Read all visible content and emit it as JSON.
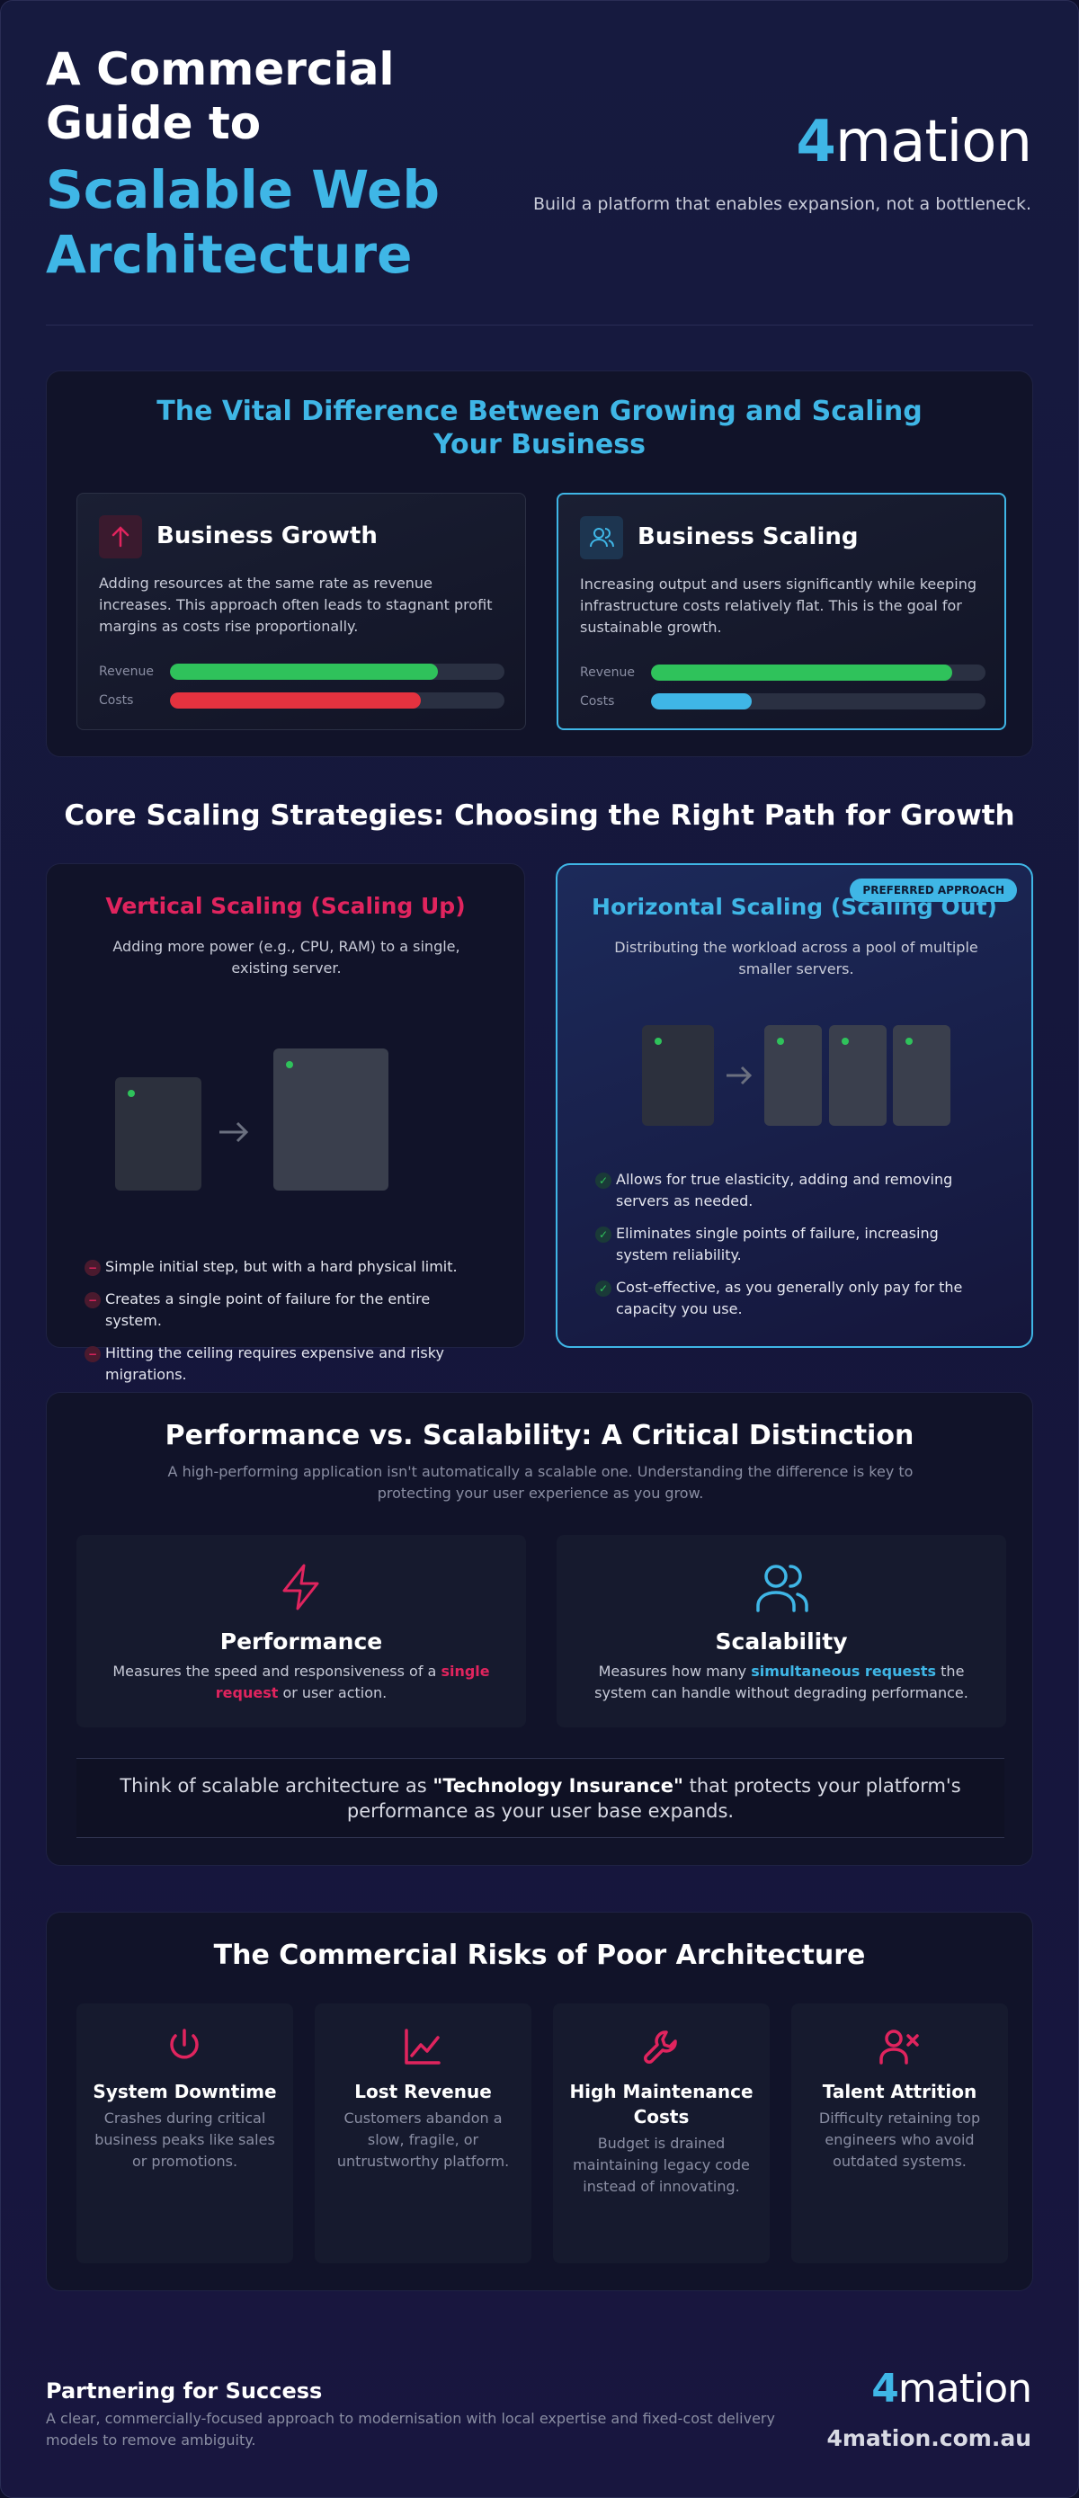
{
  "header": {
    "title_line1": "A Commercial",
    "title_line2": "Guide to",
    "title_line3": "Scalable Web",
    "title_line4": "Architecture",
    "logo": "4mation",
    "tagline": "Build a platform that enables expansion, not a bottleneck."
  },
  "difference": {
    "title": "The Vital Difference Between Growing and Scaling Your Business",
    "cards": [
      {
        "title": "Business Growth",
        "text": "Adding resources at the same rate as revenue increases. This approach often leads to stagnant profit margins as costs rise proportionally.",
        "bars": [
          {
            "label": "Revenue",
            "value": 80
          },
          {
            "label": "Costs",
            "value": 75
          }
        ]
      },
      {
        "title": "Business Scaling",
        "text": "Increasing output and users significantly while keeping infrastructure costs relatively flat. This is the goal for sustainable growth.",
        "bars": [
          {
            "label": "Revenue",
            "value": 90
          },
          {
            "label": "Costs",
            "value": 30
          }
        ]
      }
    ]
  },
  "strategies": {
    "title": "Core Scaling Strategies: Choosing the Right Path for Growth",
    "vertical": {
      "title": "Vertical Scaling (Scaling Up)",
      "text": "Adding more power (e.g., CPU, RAM) to a single, existing server.",
      "points": [
        "Simple initial step, but with a hard physical limit.",
        "Creates a single point of failure for the entire system.",
        "Hitting the ceiling requires expensive and risky migrations."
      ]
    },
    "horizontal": {
      "badge": "PREFERRED APPROACH",
      "title": "Horizontal Scaling (Scaling Out)",
      "text": "Distributing the workload across a pool of multiple smaller servers.",
      "points": [
        "Allows for true elasticity, adding and removing servers as needed.",
        "Eliminates single points of failure, increasing system reliability.",
        "Cost-effective, as you generally only pay for the capacity you use."
      ]
    }
  },
  "performance": {
    "title": "Performance vs. Scalability: A Critical Distinction",
    "subtitle": "A high-performing application isn't automatically a scalable one. Understanding the difference is key to protecting your user experience as you grow.",
    "cards": [
      {
        "title": "Performance",
        "before": "Measures the speed and responsiveness of a ",
        "highlight": "single request",
        "after": " or user action."
      },
      {
        "title": "Scalability",
        "before": "Measures how many ",
        "highlight": "simultaneous requests",
        "after": " the system can handle without degrading performance."
      }
    ],
    "quote": {
      "before": "Think of scalable architecture as ",
      "highlight": "\"Technology Insurance\"",
      "after": " that protects your platform's performance as your user base expands."
    }
  },
  "risks": {
    "title": "The Commercial Risks of Poor Architecture",
    "cards": [
      {
        "title": "System Downtime",
        "text": "Crashes during critical business peaks like sales or promotions."
      },
      {
        "title": "Lost Revenue",
        "text": "Customers abandon a slow, fragile, or untrustworthy platform."
      },
      {
        "title": "High Maintenance Costs",
        "text": "Budget is drained maintaining legacy code instead of innovating."
      },
      {
        "title": "Talent Attrition",
        "text": "Difficulty retaining top engineers who avoid outdated systems."
      }
    ]
  },
  "footer": {
    "title": "Partnering for Success",
    "text": "A clear, commercially-focused approach to modernisation with local expertise and fixed-cost delivery models to remove ambiguity.",
    "logo": "4mation",
    "url": "4mation.com.au"
  }
}
